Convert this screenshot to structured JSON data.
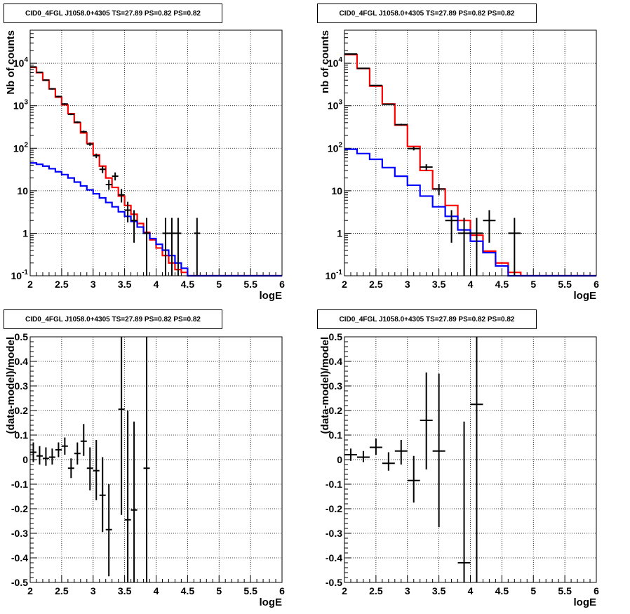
{
  "chart_data": [
    {
      "type": "line",
      "title": "CID0_4FGL J1058.0+4305 TS=27.89 PS=0.82 PS=0.82",
      "xlabel": "logE",
      "ylabel": "Nb of counts",
      "xlim": [
        2,
        6
      ],
      "ylim": [
        0.1,
        60000
      ],
      "yscale": "log",
      "grid": true,
      "xticks": [
        "2",
        "2.5",
        "3",
        "3.5",
        "4",
        "4.5",
        "5",
        "5.5",
        "6"
      ],
      "yticks": [
        {
          "value": 0.1,
          "label": "10^-1"
        },
        {
          "value": 1,
          "label": "1"
        },
        {
          "value": 10,
          "label": "10"
        },
        {
          "value": 100,
          "label": "10^2"
        },
        {
          "value": 1000,
          "label": "10^3"
        },
        {
          "value": 10000,
          "label": "10^4"
        }
      ],
      "bin_edges": [
        2.0,
        2.1,
        2.2,
        2.3,
        2.4,
        2.5,
        2.6,
        2.7,
        2.8,
        2.9,
        3.0,
        3.1,
        3.2,
        3.3,
        3.4,
        3.5,
        3.6,
        3.7,
        3.8,
        3.9,
        4.0,
        4.1,
        4.2,
        4.3,
        4.4,
        4.5,
        4.6,
        4.7,
        4.8,
        4.9,
        5.0,
        5.1,
        5.2,
        5.3,
        5.4,
        5.5,
        5.6,
        5.7,
        5.8,
        5.9,
        6.0
      ],
      "series": [
        {
          "color": "#ff0000",
          "style": "step",
          "values": [
            8000,
            6000,
            4000,
            2500,
            1600,
            1050,
            650,
            400,
            230,
            130,
            70,
            38,
            20,
            12,
            7.5,
            4.5,
            2.8,
            1.7,
            1.05,
            0.7,
            0.45,
            0.3,
            0.2,
            0.14,
            0.12,
            0.1,
            0.1,
            0.1,
            0.1,
            0.1,
            0.1,
            0.1,
            0.1,
            0.1,
            0.1,
            0.1,
            0.1,
            0.1,
            0.1,
            0.1
          ]
        },
        {
          "color": "#0000ff",
          "style": "step",
          "values": [
            45,
            42,
            38,
            33,
            28,
            24,
            20,
            16,
            13,
            10.5,
            8.5,
            6.8,
            5.3,
            4.2,
            3.2,
            2.5,
            1.9,
            1.4,
            1.0,
            0.75,
            0.55,
            0.4,
            0.3,
            0.2,
            0.15,
            0.1,
            0.1,
            0.1,
            0.1,
            0.1,
            0.1,
            0.1,
            0.1,
            0.1,
            0.1,
            0.1,
            0.1,
            0.1,
            0.1,
            0.1
          ]
        }
      ],
      "points": [
        {
          "x": 2.05,
          "y": 8200,
          "xerr": 0.05,
          "ylo": 8000,
          "yhi": 8400
        },
        {
          "x": 2.15,
          "y": 6100,
          "xerr": 0.05,
          "ylo": 5900,
          "yhi": 6300
        },
        {
          "x": 2.25,
          "y": 4000,
          "xerr": 0.05,
          "ylo": 3850,
          "yhi": 4150
        },
        {
          "x": 2.35,
          "y": 2500,
          "xerr": 0.05,
          "ylo": 2400,
          "yhi": 2600
        },
        {
          "x": 2.45,
          "y": 1650,
          "xerr": 0.05,
          "ylo": 1580,
          "yhi": 1720
        },
        {
          "x": 2.55,
          "y": 1100,
          "xerr": 0.05,
          "ylo": 1050,
          "yhi": 1150
        },
        {
          "x": 2.65,
          "y": 630,
          "xerr": 0.05,
          "ylo": 600,
          "yhi": 660
        },
        {
          "x": 2.75,
          "y": 410,
          "xerr": 0.05,
          "ylo": 390,
          "yhi": 430
        },
        {
          "x": 2.85,
          "y": 245,
          "xerr": 0.05,
          "ylo": 230,
          "yhi": 260
        },
        {
          "x": 2.95,
          "y": 125,
          "xerr": 0.05,
          "ylo": 114,
          "yhi": 136
        },
        {
          "x": 3.05,
          "y": 67,
          "xerr": 0.05,
          "ylo": 59,
          "yhi": 75
        },
        {
          "x": 3.15,
          "y": 32,
          "xerr": 0.05,
          "ylo": 26,
          "yhi": 38
        },
        {
          "x": 3.25,
          "y": 14,
          "xerr": 0.05,
          "ylo": 10.5,
          "yhi": 18
        },
        {
          "x": 3.35,
          "y": 22,
          "xerr": 0.05,
          "ylo": 17.5,
          "yhi": 27
        },
        {
          "x": 3.45,
          "y": 8,
          "xerr": 0.05,
          "ylo": 5.3,
          "yhi": 11
        },
        {
          "x": 3.55,
          "y": 3.5,
          "xerr": 0.05,
          "ylo": 1.8,
          "yhi": 5.5
        },
        {
          "x": 3.65,
          "y": 2,
          "xerr": 0.05,
          "ylo": 0.6,
          "yhi": 3.5
        },
        {
          "x": 3.85,
          "y": 1,
          "xerr": 0.05,
          "ylo": 0.1,
          "yhi": 2.3
        },
        {
          "x": 4.15,
          "y": 1,
          "xerr": 0.05,
          "ylo": 0.1,
          "yhi": 2.3
        },
        {
          "x": 4.25,
          "y": 1,
          "xerr": 0.05,
          "ylo": 0.1,
          "yhi": 2.3
        },
        {
          "x": 4.35,
          "y": 1,
          "xerr": 0.05,
          "ylo": 0.1,
          "yhi": 2.3
        },
        {
          "x": 4.65,
          "y": 1,
          "xerr": 0.05,
          "ylo": 0.1,
          "yhi": 2.3
        }
      ]
    },
    {
      "type": "line",
      "title": "CID0_4FGL J1058.0+4305 TS=27.89 PS=0.82 PS=0.82",
      "xlabel": "logE",
      "ylabel": "nb of counts",
      "xlim": [
        2,
        6
      ],
      "ylim": [
        0.1,
        60000
      ],
      "yscale": "log",
      "grid": true,
      "xticks": [
        "2",
        "2.5",
        "3",
        "3.5",
        "4",
        "4.5",
        "5",
        "5.5",
        "6"
      ],
      "yticks": [
        {
          "value": 0.1,
          "label": "10^-1"
        },
        {
          "value": 1,
          "label": "1"
        },
        {
          "value": 10,
          "label": "10"
        },
        {
          "value": 100,
          "label": "10^2"
        },
        {
          "value": 1000,
          "label": "10^3"
        },
        {
          "value": 10000,
          "label": "10^4"
        }
      ],
      "bin_edges": [
        2.0,
        2.2,
        2.4,
        2.6,
        2.8,
        3.0,
        3.2,
        3.4,
        3.6,
        3.8,
        4.0,
        4.2,
        4.4,
        4.6,
        4.8,
        5.0,
        5.2,
        5.4,
        5.6,
        5.8,
        6.0
      ],
      "series": [
        {
          "color": "#ff0000",
          "style": "step",
          "values": [
            16000,
            7500,
            2900,
            1100,
            350,
            110,
            30,
            11,
            4.5,
            2.0,
            0.9,
            0.38,
            0.2,
            0.12,
            0.1,
            0.1,
            0.1,
            0.1,
            0.1,
            0.1
          ]
        },
        {
          "color": "#0000ff",
          "style": "step",
          "values": [
            95,
            75,
            55,
            35,
            22,
            13.5,
            7.5,
            4.2,
            2.5,
            1.2,
            0.65,
            0.35,
            0.17,
            0.1,
            0.1,
            0.1,
            0.1,
            0.1,
            0.1,
            0.1
          ]
        }
      ],
      "points": [
        {
          "x": 2.1,
          "y": 16500,
          "xerr": 0.1,
          "ylo": 16000,
          "yhi": 17000
        },
        {
          "x": 2.3,
          "y": 7600,
          "xerr": 0.1,
          "ylo": 7350,
          "yhi": 7850
        },
        {
          "x": 2.5,
          "y": 3000,
          "xerr": 0.1,
          "ylo": 2900,
          "yhi": 3100
        },
        {
          "x": 2.7,
          "y": 1080,
          "xerr": 0.1,
          "ylo": 1040,
          "yhi": 1120
        },
        {
          "x": 2.9,
          "y": 360,
          "xerr": 0.1,
          "ylo": 342,
          "yhi": 378
        },
        {
          "x": 3.1,
          "y": 98,
          "xerr": 0.1,
          "ylo": 89,
          "yhi": 108
        },
        {
          "x": 3.3,
          "y": 36,
          "xerr": 0.1,
          "ylo": 30,
          "yhi": 42
        },
        {
          "x": 3.5,
          "y": 11,
          "xerr": 0.1,
          "ylo": 7.8,
          "yhi": 14.5
        },
        {
          "x": 3.7,
          "y": 2,
          "xerr": 0.1,
          "ylo": 0.6,
          "yhi": 3.5
        },
        {
          "x": 3.9,
          "y": 1,
          "xerr": 0.1,
          "ylo": 0.1,
          "yhi": 2.3
        },
        {
          "x": 4.1,
          "y": 1,
          "xerr": 0.1,
          "ylo": 0.1,
          "yhi": 2.3
        },
        {
          "x": 4.3,
          "y": 2,
          "xerr": 0.1,
          "ylo": 0.6,
          "yhi": 3.5
        },
        {
          "x": 4.7,
          "y": 1,
          "xerr": 0.1,
          "ylo": 0.1,
          "yhi": 2.3
        }
      ]
    },
    {
      "type": "scatter",
      "title": "CID0_4FGL J1058.0+4305 TS=27.89 PS=0.82 PS=0.82",
      "xlabel": "logE",
      "ylabel": "(data-model)/model",
      "xlim": [
        2,
        6
      ],
      "ylim": [
        -0.5,
        0.5
      ],
      "grid": true,
      "xticks": [
        "2",
        "2.5",
        "3",
        "3.5",
        "4",
        "4.5",
        "5",
        "5.5",
        "6"
      ],
      "yticks": [
        "-0.5",
        "-0.4",
        "-0.3",
        "-0.2",
        "-0.1",
        "0",
        "0.1",
        "0.2",
        "0.3",
        "0.4",
        "0.5"
      ],
      "points": [
        {
          "x": 2.05,
          "y": 0.03,
          "xerr": 0.05,
          "ylo": -0.01,
          "yhi": 0.07
        },
        {
          "x": 2.15,
          "y": 0.015,
          "xerr": 0.05,
          "ylo": -0.02,
          "yhi": 0.055
        },
        {
          "x": 2.25,
          "y": 0.005,
          "xerr": 0.05,
          "ylo": -0.025,
          "yhi": 0.05
        },
        {
          "x": 2.35,
          "y": 0.01,
          "xerr": 0.05,
          "ylo": -0.02,
          "yhi": 0.045
        },
        {
          "x": 2.45,
          "y": 0.04,
          "xerr": 0.05,
          "ylo": 0.01,
          "yhi": 0.07
        },
        {
          "x": 2.55,
          "y": 0.055,
          "xerr": 0.05,
          "ylo": 0.02,
          "yhi": 0.09
        },
        {
          "x": 2.65,
          "y": -0.035,
          "xerr": 0.05,
          "ylo": -0.075,
          "yhi": 0.005
        },
        {
          "x": 2.75,
          "y": 0.025,
          "xerr": 0.05,
          "ylo": -0.02,
          "yhi": 0.07
        },
        {
          "x": 2.85,
          "y": 0.075,
          "xerr": 0.05,
          "ylo": 0.015,
          "yhi": 0.145
        },
        {
          "x": 2.95,
          "y": -0.035,
          "xerr": 0.05,
          "ylo": -0.125,
          "yhi": 0.05
        },
        {
          "x": 3.05,
          "y": -0.045,
          "xerr": 0.05,
          "ylo": -0.165,
          "yhi": 0.08
        },
        {
          "x": 3.15,
          "y": -0.145,
          "xerr": 0.05,
          "ylo": -0.295,
          "yhi": 0.01
        },
        {
          "x": 3.25,
          "y": -0.285,
          "xerr": 0.05,
          "ylo": -0.475,
          "yhi": -0.1
        },
        {
          "x": 3.45,
          "y": 0.205,
          "xerr": 0.05,
          "ylo": -0.225,
          "yhi": 0.5
        },
        {
          "x": 3.55,
          "y": -0.245,
          "xerr": 0.05,
          "ylo": -0.5,
          "yhi": 0.2
        },
        {
          "x": 3.65,
          "y": -0.205,
          "xerr": 0.05,
          "ylo": -0.5,
          "yhi": 0.155
        },
        {
          "x": 3.85,
          "y": -0.035,
          "xerr": 0.05,
          "ylo": -0.5,
          "yhi": 0.5
        }
      ]
    },
    {
      "type": "scatter",
      "title": "CID0_4FGL J1058.0+4305 TS=27.89 PS=0.82 PS=0.82",
      "xlabel": "logE",
      "ylabel": "(data-model)/model",
      "xlim": [
        2,
        6
      ],
      "ylim": [
        -0.5,
        0.5
      ],
      "grid": true,
      "xticks": [
        "2",
        "2.5",
        "3",
        "3.5",
        "4",
        "4.5",
        "5",
        "5.5",
        "6"
      ],
      "yticks": [
        "-0.5",
        "-0.4",
        "-0.3",
        "-0.2",
        "-0.1",
        "0",
        "0.1",
        "0.2",
        "0.3",
        "0.4",
        "0.5"
      ],
      "points": [
        {
          "x": 2.1,
          "y": 0.02,
          "xerr": 0.1,
          "ylo": -0.005,
          "yhi": 0.045
        },
        {
          "x": 2.3,
          "y": 0.01,
          "xerr": 0.1,
          "ylo": -0.01,
          "yhi": 0.035
        },
        {
          "x": 2.5,
          "y": 0.05,
          "xerr": 0.1,
          "ylo": 0.02,
          "yhi": 0.085
        },
        {
          "x": 2.7,
          "y": -0.015,
          "xerr": 0.1,
          "ylo": -0.045,
          "yhi": 0.03
        },
        {
          "x": 2.9,
          "y": 0.035,
          "xerr": 0.1,
          "ylo": -0.02,
          "yhi": 0.08
        },
        {
          "x": 3.1,
          "y": -0.085,
          "xerr": 0.1,
          "ylo": -0.175,
          "yhi": 0.015
        },
        {
          "x": 3.3,
          "y": 0.16,
          "xerr": 0.1,
          "ylo": -0.04,
          "yhi": 0.355
        },
        {
          "x": 3.5,
          "y": 0.035,
          "xerr": 0.1,
          "ylo": -0.275,
          "yhi": 0.35
        },
        {
          "x": 3.9,
          "y": -0.42,
          "xerr": 0.1,
          "ylo": -0.5,
          "yhi": 0.155
        },
        {
          "x": 4.1,
          "y": 0.225,
          "xerr": 0.1,
          "ylo": -0.5,
          "yhi": 0.5
        }
      ]
    }
  ]
}
